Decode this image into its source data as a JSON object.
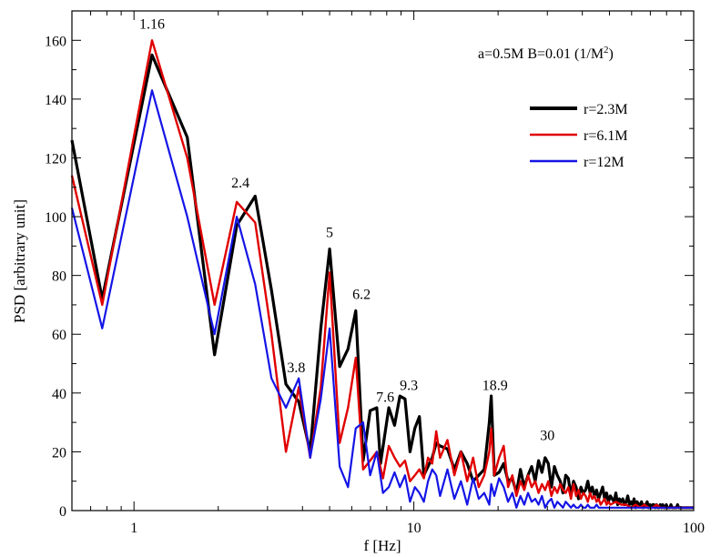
{
  "chart_data": {
    "type": "line",
    "title": "",
    "annotation": "a=0.5M  B=0.01 (1/M",
    "annotation_sup": "2",
    "annotation_end": ")",
    "xlabel": "f [Hz]",
    "ylabel": "PSD [arbitrary unit]",
    "xscale": "log",
    "xlim": [
      0.6,
      100
    ],
    "ylim": [
      0,
      170
    ],
    "x_ticks": [
      1,
      10,
      100
    ],
    "x_tick_labels": [
      "1",
      "10",
      "100"
    ],
    "y_ticks": [
      0,
      20,
      40,
      60,
      80,
      100,
      120,
      140,
      160
    ],
    "y_tick_labels": [
      "0",
      "20",
      "40",
      "60",
      "80",
      "100",
      "120",
      "140",
      "160"
    ],
    "grid": false,
    "legend_position": "top-right",
    "series": [
      {
        "name": "r=2.3M",
        "color": "#000000",
        "x": [
          0.6,
          0.77,
          1.16,
          1.55,
          1.94,
          2.33,
          2.71,
          3.1,
          3.49,
          3.88,
          4.26,
          4.65,
          5.0,
          5.43,
          5.82,
          6.2,
          6.59,
          6.98,
          7.37,
          7.6,
          8.14,
          8.53,
          8.92,
          9.3,
          9.69,
          10.08,
          10.47,
          10.86,
          11.24,
          11.63,
          12.02,
          12.41,
          13.18,
          13.96,
          14.73,
          15.51,
          16.28,
          17.06,
          17.84,
          18.61,
          18.9,
          19.39,
          20.16,
          20.94,
          21.71,
          22.49,
          23.26,
          24.04,
          24.81,
          25.59,
          26.36,
          27.14,
          27.91,
          28.69,
          29.46,
          30.24,
          31.01,
          31.79,
          32.56,
          33.34,
          34.11,
          34.89,
          35.66,
          36.44,
          37.21,
          37.99,
          38.76,
          39.54,
          40.31,
          41.09,
          41.86,
          42.64,
          43.41,
          44.19,
          44.96,
          45.74,
          46.51,
          47.29,
          48.06,
          48.84,
          49.61,
          50.39,
          51.16,
          51.94,
          52.71,
          53.49,
          54.26,
          55.04,
          55.81,
          56.59,
          57.36,
          58.14,
          58.91,
          59.69,
          60.46,
          61.24,
          62.01,
          62.79,
          63.56,
          64.34,
          65.11,
          65.89,
          66.66,
          67.44,
          68.21,
          68.99,
          69.76,
          70.54,
          71.31,
          72.09,
          72.86,
          73.64,
          74.41,
          75.19,
          75.96,
          76.74,
          77.51,
          78.29,
          79.06,
          79.84,
          80.61,
          81.39,
          82.16,
          82.94,
          83.71,
          84.49,
          85.26,
          86.04,
          86.81,
          87.59,
          88.36,
          89.14,
          89.91,
          90.69,
          91.46,
          92.24,
          93.01,
          93.79,
          94.56,
          95.34,
          96.11,
          96.89,
          97.66,
          98.44,
          99.21,
          100
        ],
        "y": [
          126,
          72,
          155,
          127,
          53,
          97,
          107,
          75,
          43,
          37,
          20,
          62,
          89,
          49,
          55,
          68,
          17,
          34,
          35,
          16,
          35,
          29,
          39,
          38,
          20,
          28,
          32,
          12,
          15,
          18,
          23,
          22,
          21,
          14,
          20,
          16,
          10,
          12,
          14,
          30,
          39,
          12,
          13,
          16,
          10,
          11,
          6,
          14,
          8,
          12,
          15,
          10,
          17,
          13,
          18,
          16,
          8,
          15,
          12,
          10,
          6,
          12,
          11,
          5,
          10,
          8,
          4,
          8,
          6,
          7,
          10,
          6,
          8,
          5,
          7,
          4,
          6,
          8,
          4,
          6,
          3,
          5,
          4,
          3,
          6,
          2,
          4,
          3,
          4,
          2,
          3,
          5,
          2,
          3,
          2,
          4,
          1,
          3,
          2,
          2,
          3,
          1,
          2,
          2,
          3,
          1,
          2,
          1,
          2,
          2,
          1,
          2,
          1,
          1,
          2,
          1,
          2,
          1,
          1,
          2,
          1,
          1,
          1,
          2,
          1,
          1,
          1,
          1,
          1,
          2,
          1,
          1,
          1,
          1,
          1,
          1,
          1,
          1,
          1,
          1,
          1,
          1,
          1,
          1,
          1,
          1
        ]
      },
      {
        "name": "r=6.1M",
        "color": "#e00000",
        "x": [
          0.6,
          0.77,
          1.16,
          1.55,
          1.94,
          2.33,
          2.71,
          3.1,
          3.49,
          3.88,
          4.26,
          4.65,
          5.0,
          5.43,
          5.82,
          6.2,
          6.59,
          6.98,
          7.37,
          7.76,
          8.14,
          8.53,
          8.92,
          9.3,
          9.69,
          10.08,
          10.47,
          10.86,
          11.24,
          11.63,
          12.02,
          12.41,
          13.18,
          13.96,
          14.73,
          15.51,
          16.28,
          17.06,
          17.84,
          18.61,
          18.9,
          19.39,
          20.16,
          20.94,
          21.71,
          22.49,
          23.26,
          24.04,
          24.81,
          25.59,
          26.36,
          27.14,
          27.91,
          28.69,
          29.46,
          30.24,
          31.01,
          31.79,
          32.56,
          33.34,
          34.11,
          34.89,
          35.66,
          36.44,
          37.21,
          37.99,
          38.76,
          39.54,
          40.31,
          41.09,
          41.86,
          42.64,
          43.41,
          44.19,
          44.96,
          45.74,
          46.51,
          47.29,
          48.06,
          48.84,
          49.61,
          50.39,
          52.71,
          55.04,
          57.36,
          59.69,
          62.01,
          64.34,
          66.66,
          68.99,
          71.31,
          73.64,
          75.96,
          78.29,
          80.61,
          82.94,
          85.26,
          87.59,
          89.91,
          92.24,
          94.56,
          96.89,
          100
        ],
        "y": [
          114,
          70,
          160,
          120,
          70,
          105,
          98,
          60,
          20,
          42,
          18,
          42,
          81,
          23,
          35,
          52,
          14,
          17,
          20,
          11,
          22,
          18,
          15,
          17,
          10,
          12,
          14,
          11,
          18,
          16,
          27,
          18,
          24,
          12,
          20,
          10,
          18,
          8,
          12,
          20,
          28,
          12,
          18,
          22,
          8,
          12,
          5,
          10,
          7,
          12,
          8,
          10,
          6,
          9,
          7,
          10,
          5,
          8,
          6,
          9,
          7,
          6,
          8,
          4,
          9,
          5,
          7,
          4,
          6,
          5,
          3,
          6,
          4,
          5,
          3,
          4,
          2,
          3,
          4,
          2,
          3,
          2,
          3,
          2,
          2,
          1,
          2,
          1,
          2,
          1,
          1,
          2,
          1,
          1,
          1,
          1,
          1,
          1,
          1,
          1,
          1,
          1,
          1
        ]
      },
      {
        "name": "r=12M",
        "color": "#1414e6",
        "x": [
          0.6,
          0.77,
          1.16,
          1.55,
          1.94,
          2.33,
          2.71,
          3.1,
          3.49,
          3.88,
          4.26,
          4.65,
          5.0,
          5.43,
          5.82,
          6.2,
          6.59,
          6.98,
          7.37,
          7.76,
          8.14,
          8.53,
          8.92,
          9.3,
          9.69,
          10.08,
          10.47,
          10.86,
          11.24,
          11.63,
          12.02,
          12.41,
          13.18,
          13.96,
          14.73,
          15.51,
          16.28,
          17.06,
          17.84,
          18.61,
          18.9,
          19.39,
          20.16,
          20.94,
          21.71,
          22.49,
          23.26,
          24.04,
          24.81,
          25.59,
          26.36,
          27.14,
          27.91,
          28.69,
          29.46,
          30.24,
          31.01,
          31.79,
          32.56,
          33.34,
          34.11,
          34.89,
          35.66,
          36.44,
          37.21,
          37.99,
          38.76,
          39.54,
          40.31,
          41.09,
          41.86,
          42.64,
          43.41,
          44.19,
          44.96,
          45.74,
          46.51,
          47.29,
          48.06,
          48.84,
          49.61,
          50.39,
          52.71,
          55.04,
          57.36,
          59.69,
          62.01,
          64.34,
          66.66,
          68.99,
          71.31,
          73.64,
          75.96,
          78.29,
          80.61,
          82.94,
          85.26,
          87.59,
          89.91,
          92.24,
          94.56,
          96.89,
          100
        ],
        "y": [
          103,
          62,
          143,
          100,
          60,
          100,
          77,
          45,
          35,
          45,
          18,
          38,
          62,
          15,
          8,
          28,
          30,
          12,
          20,
          6,
          8,
          13,
          8,
          12,
          3,
          8,
          6,
          3,
          10,
          14,
          12,
          5,
          14,
          4,
          10,
          2,
          11,
          4,
          6,
          2,
          9,
          5,
          11,
          8,
          3,
          6,
          1,
          5,
          2,
          6,
          3,
          4,
          2,
          5,
          1,
          3,
          4,
          1,
          3,
          2,
          1,
          3,
          2,
          1,
          2,
          1,
          1,
          2,
          1,
          1,
          2,
          1,
          1,
          1,
          2,
          1,
          1,
          1,
          1,
          1,
          1,
          1,
          1,
          1,
          1,
          1,
          1,
          1,
          1,
          1,
          1,
          1,
          1,
          1,
          1,
          1,
          1,
          1,
          1,
          1,
          1,
          1,
          1
        ]
      }
    ],
    "peak_labels": [
      {
        "text": "1.16",
        "x": 1.16,
        "y": 164
      },
      {
        "text": "2.4",
        "x": 2.4,
        "y": 110
      },
      {
        "text": "5",
        "x": 5.0,
        "y": 93
      },
      {
        "text": "6.2",
        "x": 6.5,
        "y": 72
      },
      {
        "text": "3.8",
        "x": 3.8,
        "y": 47
      },
      {
        "text": "7.6",
        "x": 7.9,
        "y": 37
      },
      {
        "text": "9.3",
        "x": 9.6,
        "y": 41
      },
      {
        "text": "18.9",
        "x": 19.5,
        "y": 41
      },
      {
        "text": "30",
        "x": 30,
        "y": 24
      }
    ]
  }
}
